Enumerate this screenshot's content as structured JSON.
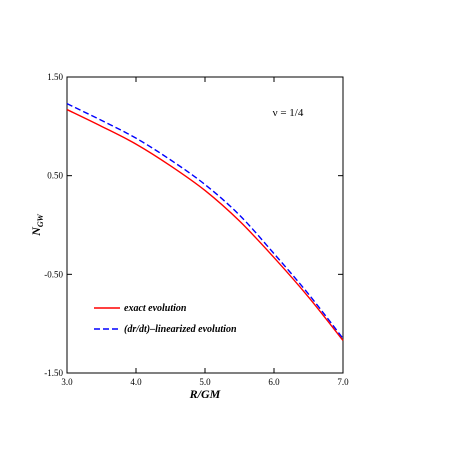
{
  "chart_data": {
    "type": "line",
    "xlabel": "R/GM",
    "ylabel_main": "N",
    "ylabel_sub": "GW",
    "annotation": "ν = 1/4",
    "xlim": [
      3.0,
      7.0
    ],
    "ylim": [
      -1.5,
      1.5
    ],
    "x_ticks": [
      3.0,
      4.0,
      5.0,
      6.0,
      7.0
    ],
    "x_tick_labels": [
      "3.0",
      "4.0",
      "5.0",
      "6.0",
      "7.0"
    ],
    "y_ticks": [
      1.5,
      0.5,
      -0.5,
      -1.5
    ],
    "y_tick_labels": [
      "1.50",
      "0.50",
      "-0.50",
      "-1.50"
    ],
    "grid": false,
    "legend_position": "bottom-left",
    "series": [
      {
        "name": "exact evolution",
        "color": "#ff0000",
        "dash": "solid",
        "x": [
          3.0,
          3.5,
          4.0,
          4.5,
          5.0,
          5.5,
          6.0,
          6.5,
          7.0
        ],
        "y": [
          1.17,
          1.0,
          0.82,
          0.6,
          0.35,
          0.04,
          -0.33,
          -0.73,
          -1.17
        ]
      },
      {
        "name": "(dr/dt)–linearized evolution",
        "color": "#0000ff",
        "dash": "dashed",
        "x": [
          3.0,
          3.5,
          4.0,
          4.5,
          5.0,
          5.5,
          6.0,
          6.5,
          7.0
        ],
        "y": [
          1.23,
          1.06,
          0.88,
          0.66,
          0.41,
          0.1,
          -0.29,
          -0.7,
          -1.15
        ]
      }
    ]
  }
}
